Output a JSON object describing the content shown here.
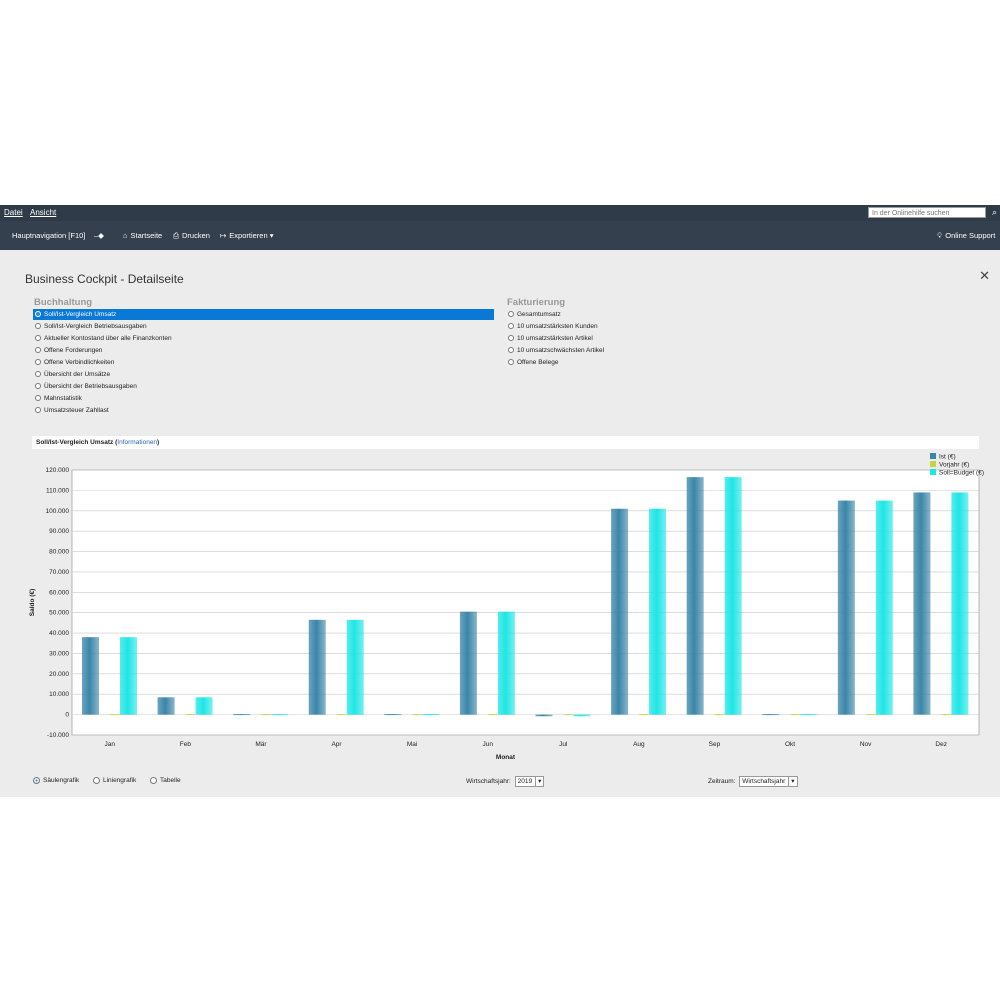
{
  "menu": {
    "file": "Datei",
    "view": "Ansicht"
  },
  "help": {
    "placeholder": "In der Onlinehilfe suchen"
  },
  "toolbar": {
    "nav": "Hauptnavigation [F10]",
    "home": "Startseite",
    "print": "Drucken",
    "export": "Exportieren",
    "support": "Online Support"
  },
  "page": {
    "title": "Business Cockpit  - Detailseite"
  },
  "accounting": {
    "heading": "Buchhaltung",
    "items": [
      "Soll/Ist-Vergleich Umsatz",
      "Soll/Ist-Vergleich Betriebsausgaben",
      "Aktueller Kontostand über alle Finanzkonten",
      "Offene Forderungen",
      "Offene Verbindlichkeiten",
      "Übersicht der Umsätze",
      "Übersicht der Betriebsausgaben",
      "Mahnstatistik",
      "Umsatzsteuer Zahllast"
    ]
  },
  "invoicing": {
    "heading": "Fakturierung",
    "items": [
      "Gesamtumsatz",
      "10 umsatzstärksten Kunden",
      "10 umsatzstärksten Artikel",
      "10 umsatzschwächsten Artikel",
      "Offene Belege"
    ]
  },
  "chart_header": {
    "title": "Soll/Ist-Vergleich Umsatz",
    "open": " (",
    "link": "Informationen",
    "close": ")"
  },
  "chart_data": {
    "type": "bar",
    "categories": [
      "Jan",
      "Feb",
      "Mär",
      "Apr",
      "Mai",
      "Jun",
      "Jul",
      "Aug",
      "Sep",
      "Okt",
      "Nov",
      "Dez"
    ],
    "series": [
      {
        "name": "Ist (€)",
        "values": [
          38000,
          8500,
          300,
          46500,
          0,
          50500,
          -800,
          101000,
          116500,
          0,
          105000,
          109000
        ]
      },
      {
        "name": "Vorjahr (€)",
        "values": [
          0,
          0,
          0,
          0,
          0,
          0,
          0,
          0,
          0,
          0,
          0,
          0
        ]
      },
      {
        "name": "Soll=Budget (€)",
        "values": [
          38000,
          8500,
          300,
          46500,
          0,
          50500,
          -800,
          101000,
          116500,
          0,
          105000,
          109000
        ]
      }
    ],
    "colors": [
      "#3a86a8",
      "#c8d43a",
      "#1ee6e6"
    ],
    "ylim": [
      -10000,
      120000
    ],
    "yticks": [
      "-10.000",
      "0",
      "10.000",
      "20.000",
      "30.000",
      "40.000",
      "50.000",
      "60.000",
      "70.000",
      "80.000",
      "90.000",
      "100.000",
      "110.000",
      "120.000"
    ],
    "xlabel": "Monat",
    "ylabel": "Saldo (€)",
    "grid": true,
    "legend": "top-right"
  },
  "bottom": {
    "chart_type": [
      "Säulengrafik",
      "Liniengrafik",
      "Tabelle"
    ],
    "fiscal_year_label": "Wirtschaftsjahr:",
    "fiscal_year_value": "2019",
    "period_label": "Zeitraum:",
    "period_value": "Wirtschaftsjahr"
  }
}
